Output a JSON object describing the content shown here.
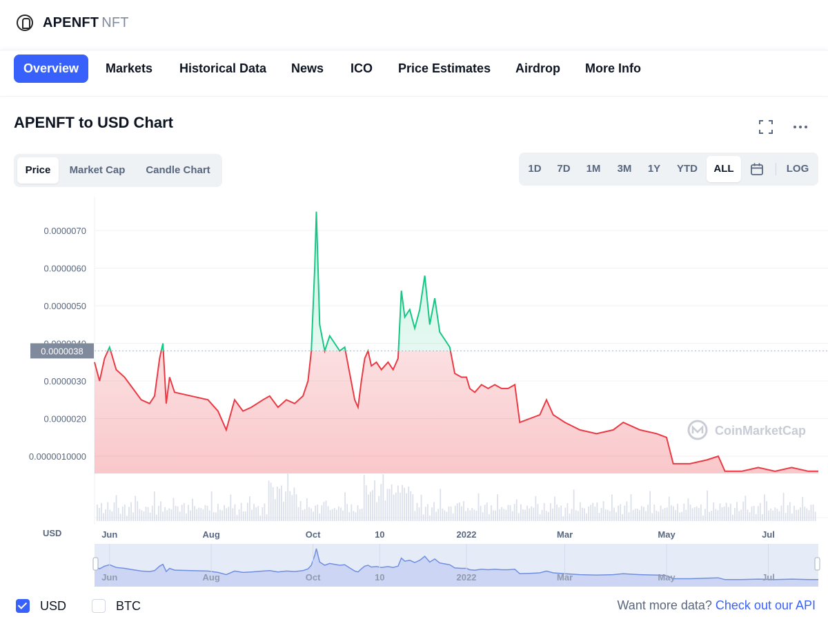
{
  "header": {
    "name": "APENFT",
    "symbol": "NFT"
  },
  "tabs": [
    {
      "label": "Overview",
      "active": true
    },
    {
      "label": "Markets"
    },
    {
      "label": "Historical Data"
    },
    {
      "label": "News"
    },
    {
      "label": "ICO"
    },
    {
      "label": "Price Estimates"
    },
    {
      "label": "Airdrop"
    },
    {
      "label": "More Info"
    }
  ],
  "chart_header": {
    "title": "APENFT to USD Chart"
  },
  "chart_types": [
    "Price",
    "Market Cap",
    "Candle Chart"
  ],
  "ranges": [
    "1D",
    "7D",
    "1M",
    "3M",
    "1Y",
    "YTD",
    "ALL"
  ],
  "range_active": "ALL",
  "log_label": "LOG",
  "watermark": "CoinMarketCap",
  "currency_options": [
    {
      "label": "USD",
      "checked": true
    },
    {
      "label": "BTC",
      "checked": false
    }
  ],
  "footer": {
    "text": "Want more data?",
    "link": "Check out our API"
  },
  "colors": {
    "up": "#16c784",
    "down": "#ea3943",
    "accent": "#3861fb"
  },
  "chart_data": {
    "type": "line",
    "ylabel": "USD",
    "y_ticks": [
      "0.0000010000",
      "0.0000020",
      "0.0000030",
      "0.0000040",
      "0.0000050",
      "0.0000060",
      "0.0000070"
    ],
    "y_tick_values": [
      1e-06,
      2e-06,
      3e-06,
      4e-06,
      5e-06,
      6e-06,
      7e-06
    ],
    "ylim": [
      1e-07,
      7.8e-06
    ],
    "xlim": [
      "2021-05-23",
      "2022-07-31"
    ],
    "x_ticks": [
      {
        "label": "Jun",
        "date": "2021-06-01"
      },
      {
        "label": "Aug",
        "date": "2021-08-01"
      },
      {
        "label": "Oct",
        "date": "2021-10-01"
      },
      {
        "label": "10",
        "date": "2021-11-10"
      },
      {
        "label": "2022",
        "date": "2022-01-01"
      },
      {
        "label": "Mar",
        "date": "2022-03-01"
      },
      {
        "label": "May",
        "date": "2022-05-01"
      },
      {
        "label": "Jul",
        "date": "2022-07-01"
      }
    ],
    "baseline": 3.8e-06,
    "baseline_label": "0.0000038",
    "series": [
      {
        "values": [
          [
            "2021-05-23",
            3.5e-06
          ],
          [
            "2021-05-26",
            3e-06
          ],
          [
            "2021-05-29",
            3.6e-06
          ],
          [
            "2021-06-01",
            3.9e-06
          ],
          [
            "2021-06-05",
            3.3e-06
          ],
          [
            "2021-06-10",
            3.1e-06
          ],
          [
            "2021-06-15",
            2.8e-06
          ],
          [
            "2021-06-20",
            2.5e-06
          ],
          [
            "2021-06-25",
            2.4e-06
          ],
          [
            "2021-06-28",
            2.6e-06
          ],
          [
            "2021-07-01",
            3.6e-06
          ],
          [
            "2021-07-03",
            4e-06
          ],
          [
            "2021-07-05",
            2.4e-06
          ],
          [
            "2021-07-07",
            3.1e-06
          ],
          [
            "2021-07-10",
            2.7e-06
          ],
          [
            "2021-07-20",
            2.6e-06
          ],
          [
            "2021-07-30",
            2.5e-06
          ],
          [
            "2021-08-05",
            2.2e-06
          ],
          [
            "2021-08-10",
            1.7e-06
          ],
          [
            "2021-08-15",
            2.5e-06
          ],
          [
            "2021-08-20",
            2.2e-06
          ],
          [
            "2021-08-25",
            2.3e-06
          ],
          [
            "2021-09-01",
            2.5e-06
          ],
          [
            "2021-09-05",
            2.6e-06
          ],
          [
            "2021-09-10",
            2.3e-06
          ],
          [
            "2021-09-15",
            2.5e-06
          ],
          [
            "2021-09-20",
            2.4e-06
          ],
          [
            "2021-09-25",
            2.6e-06
          ],
          [
            "2021-09-28",
            3e-06
          ],
          [
            "2021-09-30",
            3.8e-06
          ],
          [
            "2021-10-02",
            6e-06
          ],
          [
            "2021-10-03",
            7.5e-06
          ],
          [
            "2021-10-05",
            4.5e-06
          ],
          [
            "2021-10-08",
            3.8e-06
          ],
          [
            "2021-10-11",
            4.2e-06
          ],
          [
            "2021-10-14",
            4e-06
          ],
          [
            "2021-10-17",
            3.8e-06
          ],
          [
            "2021-10-20",
            3.9e-06
          ],
          [
            "2021-10-23",
            3.2e-06
          ],
          [
            "2021-10-26",
            2.5e-06
          ],
          [
            "2021-10-28",
            2.3e-06
          ],
          [
            "2021-10-30",
            3e-06
          ],
          [
            "2021-11-01",
            3.6e-06
          ],
          [
            "2021-11-03",
            3.8e-06
          ],
          [
            "2021-11-05",
            3.4e-06
          ],
          [
            "2021-11-08",
            3.5e-06
          ],
          [
            "2021-11-11",
            3.3e-06
          ],
          [
            "2021-11-15",
            3.5e-06
          ],
          [
            "2021-11-18",
            3.3e-06
          ],
          [
            "2021-11-21",
            3.6e-06
          ],
          [
            "2021-11-23",
            5.4e-06
          ],
          [
            "2021-11-25",
            4.7e-06
          ],
          [
            "2021-11-28",
            4.9e-06
          ],
          [
            "2021-12-01",
            4.4e-06
          ],
          [
            "2021-12-04",
            4.9e-06
          ],
          [
            "2021-12-07",
            5.8e-06
          ],
          [
            "2021-12-10",
            4.5e-06
          ],
          [
            "2021-12-13",
            5.2e-06
          ],
          [
            "2021-12-16",
            4.3e-06
          ],
          [
            "2021-12-19",
            4.1e-06
          ],
          [
            "2021-12-22",
            3.9e-06
          ],
          [
            "2021-12-25",
            3.2e-06
          ],
          [
            "2021-12-29",
            3.1e-06
          ],
          [
            "2022-01-01",
            3.1e-06
          ],
          [
            "2022-01-03",
            2.8e-06
          ],
          [
            "2022-01-06",
            2.7e-06
          ],
          [
            "2022-01-10",
            2.9e-06
          ],
          [
            "2022-01-14",
            2.8e-06
          ],
          [
            "2022-01-18",
            2.9e-06
          ],
          [
            "2022-01-22",
            2.8e-06
          ],
          [
            "2022-01-26",
            2.8e-06
          ],
          [
            "2022-01-30",
            2.9e-06
          ],
          [
            "2022-02-02",
            1.9e-06
          ],
          [
            "2022-02-08",
            2e-06
          ],
          [
            "2022-02-14",
            2.1e-06
          ],
          [
            "2022-02-18",
            2.5e-06
          ],
          [
            "2022-02-22",
            2.1e-06
          ],
          [
            "2022-03-01",
            1.9e-06
          ],
          [
            "2022-03-10",
            1.7e-06
          ],
          [
            "2022-03-20",
            1.6e-06
          ],
          [
            "2022-03-30",
            1.7e-06
          ],
          [
            "2022-04-05",
            1.9e-06
          ],
          [
            "2022-04-10",
            1.8e-06
          ],
          [
            "2022-04-15",
            1.7e-06
          ],
          [
            "2022-04-25",
            1.6e-06
          ],
          [
            "2022-05-01",
            1.5e-06
          ],
          [
            "2022-05-05",
            8e-07
          ],
          [
            "2022-05-15",
            8e-07
          ],
          [
            "2022-05-25",
            9e-07
          ],
          [
            "2022-06-01",
            1e-06
          ],
          [
            "2022-06-05",
            6e-07
          ],
          [
            "2022-06-15",
            6e-07
          ],
          [
            "2022-06-25",
            7e-07
          ],
          [
            "2022-07-05",
            6e-07
          ],
          [
            "2022-07-15",
            7e-07
          ],
          [
            "2022-07-25",
            6e-07
          ],
          [
            "2022-07-31",
            6e-07
          ]
        ]
      }
    ],
    "grid": true
  }
}
